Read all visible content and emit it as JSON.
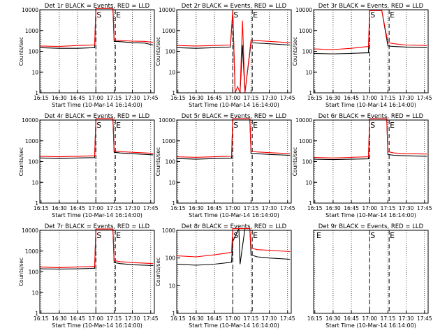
{
  "chart_data": [
    {
      "type": "line",
      "title": "Det 1r BLACK = Events, RED = LLD",
      "xlabel": "Start Time (10-Mar-14 16:14:00)",
      "ylabel": "Counts/sec",
      "x_ticks": [
        "16:15",
        "16:30",
        "16:45",
        "17:00",
        "17:15",
        "17:30",
        "17:45"
      ],
      "y_ticks": [
        "1",
        "10",
        "100",
        "1000",
        "10000"
      ],
      "ylim": [
        1,
        10000
      ],
      "yscale": "log",
      "grid": "dotted",
      "markers": [
        {
          "time": "17:00",
          "label": "S"
        },
        {
          "time": "17:16",
          "label": "E"
        }
      ],
      "series": [
        {
          "name": "Events",
          "color": "#000000",
          "x": [
            "16:14",
            "16:30",
            "16:45",
            "16:59",
            "17:00",
            "17:05",
            "17:10",
            "17:14",
            "17:15",
            "17:20",
            "17:30",
            "17:40",
            "17:47"
          ],
          "values": [
            150,
            140,
            140,
            150,
            12000,
            12000,
            12000,
            12000,
            300,
            290,
            260,
            250,
            200
          ]
        },
        {
          "name": "LLD",
          "color": "#ff0000",
          "x": [
            "16:14",
            "16:30",
            "16:45",
            "16:59",
            "17:00",
            "17:05",
            "17:10",
            "17:14",
            "17:15",
            "17:20",
            "17:30",
            "17:40",
            "17:47"
          ],
          "values": [
            180,
            170,
            190,
            200,
            12000,
            12000,
            12000,
            12000,
            360,
            330,
            310,
            300,
            270
          ]
        }
      ]
    },
    {
      "type": "line",
      "title": "Det 2r BLACK = Events, RED = LLD",
      "xlabel": "Start Time (10-Mar-14 16:14:00)",
      "ylabel": "Counts/sec",
      "x_ticks": [
        "16:15",
        "16:30",
        "16:45",
        "17:00",
        "17:15",
        "17:30",
        "17:45"
      ],
      "y_ticks": [
        "1",
        "10",
        "100",
        "1000",
        "10000"
      ],
      "ylim": [
        1,
        10000
      ],
      "yscale": "log",
      "grid": "dotted",
      "markers": [
        {
          "time": "17:00",
          "label": "S"
        },
        {
          "time": "17:16",
          "label": "E"
        }
      ],
      "series": [
        {
          "name": "Events",
          "color": "#000000",
          "x": [
            "16:14",
            "16:30",
            "16:45",
            "16:58",
            "17:00",
            "17:02",
            "17:04",
            "17:06",
            "17:08",
            "17:10",
            "17:15",
            "17:30",
            "17:47"
          ],
          "values": [
            150,
            140,
            150,
            160,
            8000,
            1,
            1,
            1,
            200,
            1,
            260,
            230,
            200
          ]
        },
        {
          "name": "LLD",
          "color": "#ff0000",
          "x": [
            "16:14",
            "16:30",
            "16:45",
            "16:58",
            "17:00",
            "17:02",
            "17:04",
            "17:06",
            "17:08",
            "17:10",
            "17:15",
            "17:30",
            "17:47"
          ],
          "values": [
            190,
            180,
            190,
            200,
            9000,
            1,
            2,
            1,
            3000,
            1,
            340,
            300,
            260
          ]
        }
      ]
    },
    {
      "type": "line",
      "title": "Det 3r BLACK = Events, RED = LLD",
      "xlabel": "Start Time (10-Mar-14 16:14:00)",
      "ylabel": "Counts/sec",
      "x_ticks": [
        "16:15",
        "16:30",
        "16:45",
        "17:00",
        "17:15",
        "17:30",
        "17:45"
      ],
      "y_ticks": [
        "1",
        "10",
        "100",
        "1000",
        "10000"
      ],
      "ylim": [
        1,
        10000
      ],
      "yscale": "log",
      "grid": "dotted",
      "markers": [
        {
          "time": "17:00",
          "label": "S"
        },
        {
          "time": "17:16",
          "label": "E"
        }
      ],
      "series": [
        {
          "name": "Events",
          "color": "#000000",
          "x": [
            "16:14",
            "16:30",
            "16:45",
            "16:59",
            "17:00",
            "17:10",
            "17:15",
            "17:20",
            "17:30",
            "17:47"
          ],
          "values": [
            80,
            75,
            80,
            85,
            9000,
            9000,
            180,
            170,
            160,
            150
          ]
        },
        {
          "name": "LLD",
          "color": "#ff0000",
          "x": [
            "16:14",
            "16:30",
            "16:45",
            "16:59",
            "17:00",
            "17:10",
            "17:15",
            "17:20",
            "17:30",
            "17:47"
          ],
          "values": [
            130,
            120,
            140,
            170,
            9000,
            9000,
            260,
            230,
            200,
            190
          ]
        }
      ]
    },
    {
      "type": "line",
      "title": "Det 4r BLACK = Events, RED = LLD",
      "xlabel": "Start Time (10-Mar-14 16:14:00)",
      "ylabel": "Counts/sec",
      "x_ticks": [
        "16:15",
        "16:30",
        "16:45",
        "17:00",
        "17:15",
        "17:30",
        "17:45"
      ],
      "y_ticks": [
        "1",
        "10",
        "100",
        "1000",
        "10000"
      ],
      "ylim": [
        1,
        10000
      ],
      "yscale": "log",
      "grid": "dotted",
      "markers": [
        {
          "time": "17:00",
          "label": "S"
        },
        {
          "time": "17:16",
          "label": "E"
        }
      ],
      "series": [
        {
          "name": "Events",
          "color": "#000000",
          "x": [
            "16:14",
            "16:30",
            "16:45",
            "16:59",
            "17:00",
            "17:10",
            "17:14",
            "17:15",
            "17:20",
            "17:30",
            "17:47"
          ],
          "values": [
            150,
            140,
            150,
            155,
            12000,
            12000,
            12000,
            280,
            260,
            240,
            210
          ]
        },
        {
          "name": "LLD",
          "color": "#ff0000",
          "x": [
            "16:14",
            "16:30",
            "16:45",
            "16:59",
            "17:00",
            "17:10",
            "17:14",
            "17:15",
            "17:20",
            "17:30",
            "17:47"
          ],
          "values": [
            180,
            170,
            180,
            190,
            12000,
            12000,
            12000,
            330,
            300,
            280,
            250
          ]
        }
      ]
    },
    {
      "type": "line",
      "title": "Det 5r BLACK = Events, RED = LLD",
      "xlabel": "Start Time (10-Mar-14 16:14:00)",
      "ylabel": "Counts/sec",
      "x_ticks": [
        "16:15",
        "16:30",
        "16:45",
        "17:00",
        "17:15",
        "17:30",
        "17:45"
      ],
      "y_ticks": [
        "1",
        "10",
        "100",
        "1000",
        "10000"
      ],
      "ylim": [
        1,
        10000
      ],
      "yscale": "log",
      "grid": "dotted",
      "markers": [
        {
          "time": "17:00",
          "label": "S"
        },
        {
          "time": "17:16",
          "label": "E"
        }
      ],
      "series": [
        {
          "name": "Events",
          "color": "#000000",
          "x": [
            "16:14",
            "16:30",
            "16:45",
            "16:59",
            "17:00",
            "17:10",
            "17:14",
            "17:15",
            "17:20",
            "17:30",
            "17:47"
          ],
          "values": [
            140,
            130,
            140,
            145,
            12000,
            12000,
            12000,
            250,
            240,
            220,
            200
          ]
        },
        {
          "name": "LLD",
          "color": "#ff0000",
          "x": [
            "16:14",
            "16:30",
            "16:45",
            "16:59",
            "17:00",
            "17:10",
            "17:14",
            "17:15",
            "17:20",
            "17:30",
            "17:47"
          ],
          "values": [
            170,
            160,
            170,
            180,
            12000,
            12000,
            12000,
            310,
            290,
            270,
            240
          ]
        }
      ]
    },
    {
      "type": "line",
      "title": "Det 6r BLACK = Events, RED = LLD",
      "xlabel": "Start Time (10-Mar-14 16:14:00)",
      "ylabel": "Counts/sec",
      "x_ticks": [
        "16:15",
        "16:30",
        "16:45",
        "17:00",
        "17:15",
        "17:30",
        "17:45"
      ],
      "y_ticks": [
        "1",
        "10",
        "100",
        "1000",
        "10000"
      ],
      "ylim": [
        1,
        10000
      ],
      "yscale": "log",
      "grid": "dotted",
      "markers": [
        {
          "time": "17:00",
          "label": "S"
        },
        {
          "time": "17:16",
          "label": "E"
        }
      ],
      "series": [
        {
          "name": "Events",
          "color": "#000000",
          "x": [
            "16:14",
            "16:30",
            "16:45",
            "16:59",
            "17:00",
            "17:10",
            "17:14",
            "17:15",
            "17:20",
            "17:30",
            "17:47"
          ],
          "values": [
            130,
            125,
            130,
            135,
            12000,
            12000,
            12000,
            220,
            200,
            190,
            180
          ]
        },
        {
          "name": "LLD",
          "color": "#ff0000",
          "x": [
            "16:14",
            "16:30",
            "16:45",
            "16:59",
            "17:00",
            "17:10",
            "17:14",
            "17:15",
            "17:20",
            "17:30",
            "17:47"
          ],
          "values": [
            160,
            150,
            160,
            170,
            12000,
            12000,
            12000,
            300,
            260,
            240,
            230
          ]
        }
      ]
    },
    {
      "type": "line",
      "title": "Det 7r BLACK = Events, RED = LLD",
      "xlabel": "Start Time (10-Mar-14 16:14:00)",
      "ylabel": "Counts/sec",
      "x_ticks": [
        "16:15",
        "16:30",
        "16:45",
        "17:00",
        "17:15",
        "17:30",
        "17:45"
      ],
      "y_ticks": [
        "1",
        "10",
        "100",
        "1000",
        "10000"
      ],
      "ylim": [
        1,
        10000
      ],
      "yscale": "log",
      "grid": "dotted",
      "markers": [
        {
          "time": "17:00",
          "label": "S"
        },
        {
          "time": "17:16",
          "label": "E"
        }
      ],
      "series": [
        {
          "name": "Events",
          "color": "#000000",
          "x": [
            "16:14",
            "16:30",
            "16:45",
            "16:59",
            "17:00",
            "17:10",
            "17:14",
            "17:15",
            "17:20",
            "17:30",
            "17:47"
          ],
          "values": [
            140,
            135,
            140,
            150,
            12000,
            12000,
            12000,
            280,
            250,
            220,
            200
          ]
        },
        {
          "name": "LLD",
          "color": "#ff0000",
          "x": [
            "16:14",
            "16:30",
            "16:45",
            "16:59",
            "17:00",
            "17:10",
            "17:14",
            "17:15",
            "17:20",
            "17:30",
            "17:47"
          ],
          "values": [
            170,
            160,
            170,
            185,
            12000,
            12000,
            12000,
            350,
            310,
            280,
            250
          ]
        }
      ]
    },
    {
      "type": "line",
      "title": "Det 8r BLACK = Events, RED = LLD",
      "xlabel": "Start Time (10-Mar-14 16:14:00)",
      "ylabel": "Counts/sec",
      "x_ticks": [
        "16:15",
        "16:30",
        "16:45",
        "17:00",
        "17:15",
        "17:30",
        "17:45"
      ],
      "y_ticks": [
        "1",
        "10",
        "100",
        "1000"
      ],
      "ylim": [
        1,
        1000
      ],
      "yscale": "log",
      "grid": "dotted",
      "markers": [
        {
          "time": "17:00",
          "label": "S"
        },
        {
          "time": "17:16",
          "label": "E"
        }
      ],
      "series": [
        {
          "name": "Events",
          "color": "#000000",
          "x": [
            "16:14",
            "16:30",
            "16:45",
            "16:59",
            "17:00",
            "17:05",
            "17:06",
            "17:10",
            "17:14",
            "17:15",
            "17:20",
            "17:30",
            "17:47"
          ],
          "values": [
            60,
            55,
            60,
            70,
            400,
            1200,
            60,
            1200,
            1200,
            130,
            110,
            100,
            90
          ]
        },
        {
          "name": "LLD",
          "color": "#ff0000",
          "x": [
            "16:14",
            "16:30",
            "16:45",
            "16:59",
            "17:00",
            "17:10",
            "17:14",
            "17:15",
            "17:20",
            "17:30",
            "17:47"
          ],
          "values": [
            120,
            110,
            130,
            160,
            1200,
            1200,
            1200,
            230,
            200,
            190,
            170
          ]
        }
      ]
    },
    {
      "type": "line",
      "title": "Det 9r BLACK = Events, RED = LLD",
      "xlabel": "Start Time (10-Mar-14 16:14:00)",
      "ylabel": "",
      "x_ticks": [
        "16:15",
        "16:30",
        "16:45",
        "17:00",
        "17:15",
        "17:30",
        "17:45"
      ],
      "y_ticks": [],
      "yscale": "log",
      "grid": "dotted",
      "markers": [
        {
          "time": "16:14",
          "label": "E"
        },
        {
          "time": "17:00",
          "label": "S"
        },
        {
          "time": "17:16",
          "label": "E"
        }
      ],
      "series": []
    }
  ]
}
